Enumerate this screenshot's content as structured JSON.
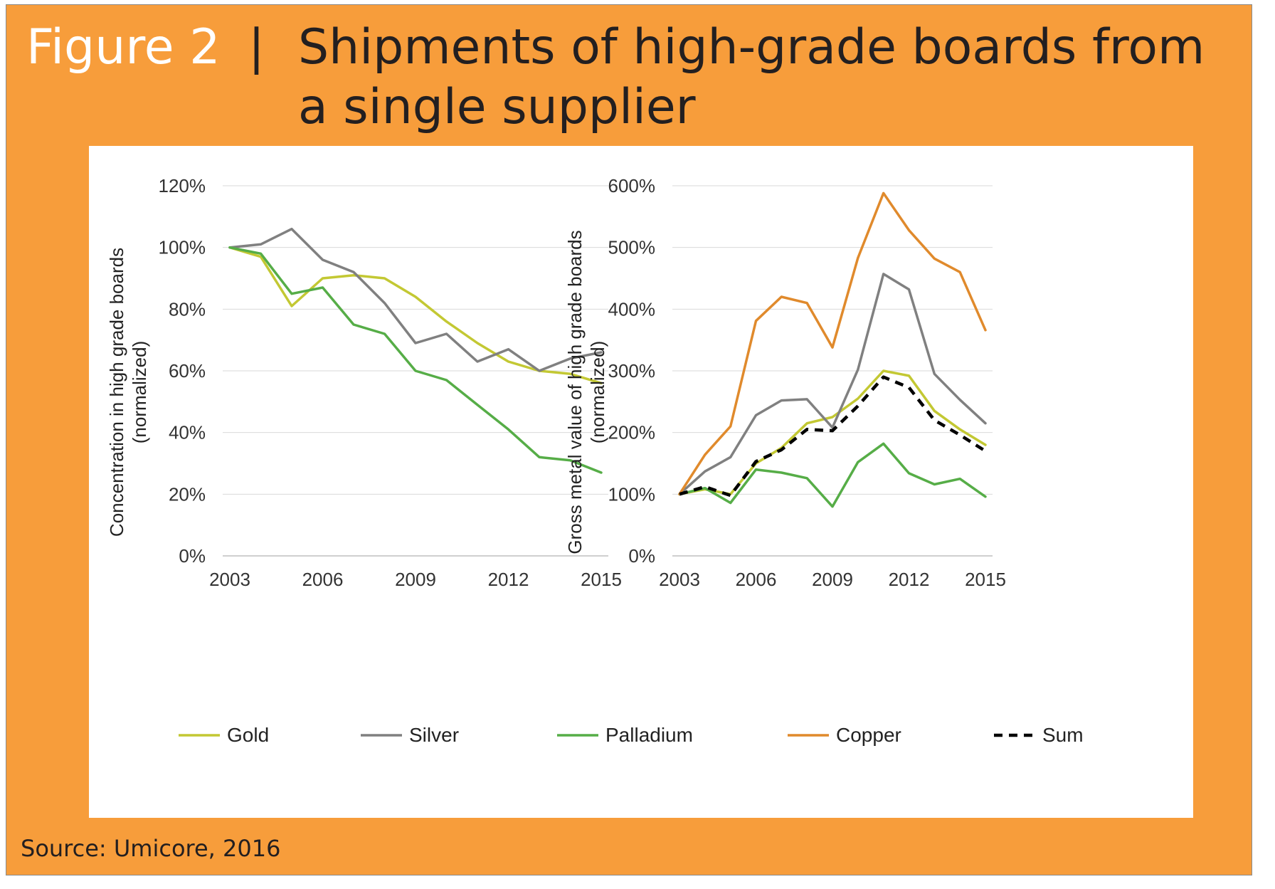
{
  "figure": {
    "label": "Figure 2",
    "separator": "|",
    "title": "Shipments of high-grade boards from a single supplier",
    "source": "Source: Umicore, 2016"
  },
  "colors": {
    "frame": "#f79d3b",
    "Gold": "#c3c833",
    "Silver": "#808080",
    "Palladium": "#56ad47",
    "Copper": "#e08a2c",
    "Sum": "#000000"
  },
  "legend": [
    {
      "name": "Gold",
      "color": "#c3c833",
      "dashed": false
    },
    {
      "name": "Silver",
      "color": "#808080",
      "dashed": false
    },
    {
      "name": "Palladium",
      "color": "#56ad47",
      "dashed": false
    },
    {
      "name": "Copper",
      "color": "#e08a2c",
      "dashed": false
    },
    {
      "name": "Sum",
      "color": "#000000",
      "dashed": true
    }
  ],
  "chart_data": [
    {
      "type": "line",
      "ylabel": [
        "Concentration in high grade boards",
        "(normalized)"
      ],
      "xlabel": "",
      "x": [
        2003,
        2004,
        2005,
        2006,
        2007,
        2008,
        2009,
        2010,
        2011,
        2012,
        2013,
        2014,
        2015
      ],
      "x_ticks": [
        "2003",
        "2006",
        "2009",
        "2012",
        "2015"
      ],
      "y_ticks": [
        "0%",
        "20%",
        "40%",
        "60%",
        "80%",
        "100%",
        "120%"
      ],
      "ylim": [
        0,
        120
      ],
      "grid": "horizontal",
      "series": [
        {
          "name": "Gold",
          "values": [
            100,
            97,
            81,
            90,
            91,
            90,
            84,
            76,
            69,
            63,
            60,
            59,
            56
          ]
        },
        {
          "name": "Silver",
          "values": [
            100,
            101,
            106,
            96,
            92,
            82,
            69,
            72,
            63,
            67,
            60,
            64,
            66
          ]
        },
        {
          "name": "Palladium",
          "values": [
            100,
            98,
            85,
            87,
            75,
            72,
            60,
            57,
            49,
            41,
            32,
            31,
            27
          ]
        }
      ]
    },
    {
      "type": "line",
      "ylabel": [
        "Gross metal value of high grade boards",
        "(normalized)"
      ],
      "xlabel": "",
      "x": [
        2003,
        2004,
        2005,
        2006,
        2007,
        2008,
        2009,
        2010,
        2011,
        2012,
        2013,
        2014,
        2015
      ],
      "x_ticks": [
        "2003",
        "2006",
        "2009",
        "2012",
        "2015"
      ],
      "y_ticks": [
        "0%",
        "100%",
        "200%",
        "300%",
        "400%",
        "500%",
        "600%"
      ],
      "ylim": [
        0,
        600
      ],
      "grid": "horizontal",
      "series": [
        {
          "name": "Gold",
          "values": [
            100,
            108,
            100,
            150,
            175,
            215,
            225,
            255,
            300,
            292,
            235,
            205,
            180
          ]
        },
        {
          "name": "Silver",
          "values": [
            100,
            137,
            160,
            228,
            252,
            254,
            208,
            302,
            457,
            432,
            295,
            253,
            215
          ]
        },
        {
          "name": "Palladium",
          "values": [
            100,
            110,
            86,
            140,
            135,
            126,
            80,
            152,
            182,
            134,
            116,
            125,
            96
          ]
        },
        {
          "name": "Copper",
          "values": [
            100,
            164,
            210,
            381,
            420,
            410,
            338,
            483,
            588,
            528,
            482,
            460,
            366
          ]
        },
        {
          "name": "Sum",
          "values": [
            100,
            112,
            98,
            153,
            172,
            205,
            203,
            243,
            290,
            273,
            220,
            196,
            170
          ]
        }
      ]
    }
  ]
}
